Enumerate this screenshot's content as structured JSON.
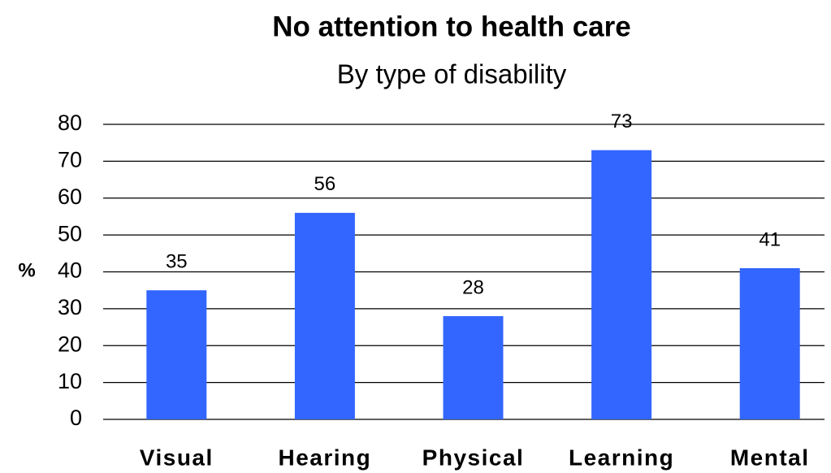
{
  "chart_data": {
    "type": "bar",
    "title": "No attention to health care",
    "subtitle": "By type of disability",
    "y_label": "%",
    "categories": [
      "Visual",
      "Hearing",
      "Physical",
      "Learning",
      "Mental"
    ],
    "values": [
      35,
      56,
      28,
      73,
      41
    ],
    "color": "#3366ff",
    "ylim": [
      0,
      80
    ],
    "yticks": [
      0,
      10,
      20,
      30,
      40,
      50,
      60,
      70,
      80
    ],
    "grid": true
  }
}
